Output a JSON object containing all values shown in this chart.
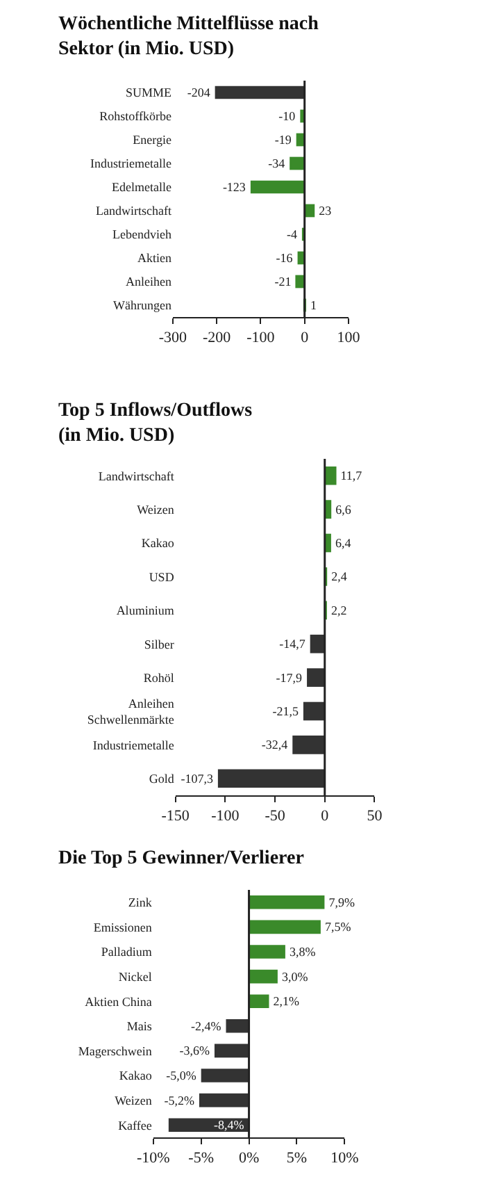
{
  "chart_data": [
    {
      "type": "bar",
      "orientation": "horizontal",
      "title": "Wöchentliche Mittelflüsse nach\nSektor (in Mio. USD)",
      "categories": [
        "SUMME",
        "Rohstoffkörbe",
        "Energie",
        "Industriemetalle",
        "Edelmetalle",
        "Landwirtschaft",
        "Lebendvieh",
        "Aktien",
        "Anleihen",
        "Währungen"
      ],
      "values": [
        -204,
        -10,
        -19,
        -34,
        -123,
        23,
        -4,
        -16,
        -21,
        1
      ],
      "colors": [
        "#333333",
        "#3a8a2a",
        "#3a8a2a",
        "#3a8a2a",
        "#3a8a2a",
        "#3a8a2a",
        "#3a8a2a",
        "#3a8a2a",
        "#3a8a2a",
        "#3a8a2a"
      ],
      "value_labels": [
        "-204",
        "-10",
        "-19",
        "-34",
        "-123",
        "23",
        "-4",
        "-16",
        "-21",
        "1"
      ],
      "xlim": [
        -300,
        100
      ],
      "xticks": [
        -300,
        -200,
        -100,
        0,
        100
      ],
      "ref_lines": [
        {
          "axis": "x",
          "value": 0
        }
      ]
    },
    {
      "type": "bar",
      "orientation": "horizontal",
      "title": "Top 5 Inflows/Outflows\n(in Mio. USD)",
      "categories": [
        "Landwirtschaft",
        "Weizen",
        "Kakao",
        "USD",
        "Aluminium",
        "Silber",
        "Rohöl",
        "Anleihen\nSchwellenmärkte",
        "Industriemetalle",
        "Gold"
      ],
      "values": [
        11.7,
        6.6,
        6.4,
        2.4,
        2.2,
        -14.7,
        -17.9,
        -21.5,
        -32.4,
        -107.3
      ],
      "colors": [
        "#3a8a2a",
        "#3a8a2a",
        "#3a8a2a",
        "#3a8a2a",
        "#3a8a2a",
        "#333333",
        "#333333",
        "#333333",
        "#333333",
        "#333333"
      ],
      "value_labels": [
        "11,7",
        "6,6",
        "6,4",
        "2,4",
        "2,2",
        "-14,7",
        "-17,9",
        "-21,5",
        "-32,4",
        "-107,3"
      ],
      "xlim": [
        -150,
        50
      ],
      "xticks": [
        -150,
        -100,
        -50,
        0,
        50
      ],
      "ref_lines": [
        {
          "axis": "x",
          "value": 0
        }
      ]
    },
    {
      "type": "bar",
      "orientation": "horizontal",
      "title": "Die Top 5 Gewinner/Verlierer",
      "categories": [
        "Zink",
        "Emissionen",
        "Palladium",
        "Nickel",
        "Aktien China",
        "Mais",
        "Magerschwein",
        "Kakao",
        "Weizen",
        "Kaffee"
      ],
      "values": [
        7.9,
        7.5,
        3.8,
        3.0,
        2.1,
        -2.4,
        -3.6,
        -5.0,
        -5.2,
        -8.4
      ],
      "colors": [
        "#3a8a2a",
        "#3a8a2a",
        "#3a8a2a",
        "#3a8a2a",
        "#3a8a2a",
        "#333333",
        "#333333",
        "#333333",
        "#333333",
        "#333333"
      ],
      "value_labels": [
        "7,9%",
        "7,5%",
        "3,8%",
        "3,0%",
        "2,1%",
        "-2,4%",
        "-3,6%",
        "-5,0%",
        "-5,2%",
        "-8,4%"
      ],
      "xlim": [
        -10,
        10
      ],
      "xticks": [
        {
          "value": -10,
          "label": "-10%"
        },
        {
          "value": -5,
          "label": "-5%"
        },
        {
          "value": 0,
          "label": "0%"
        },
        {
          "value": 5,
          "label": "5%"
        },
        {
          "value": 10,
          "label": "10%"
        }
      ],
      "ref_lines": [
        {
          "axis": "x",
          "value": 0
        }
      ]
    }
  ]
}
